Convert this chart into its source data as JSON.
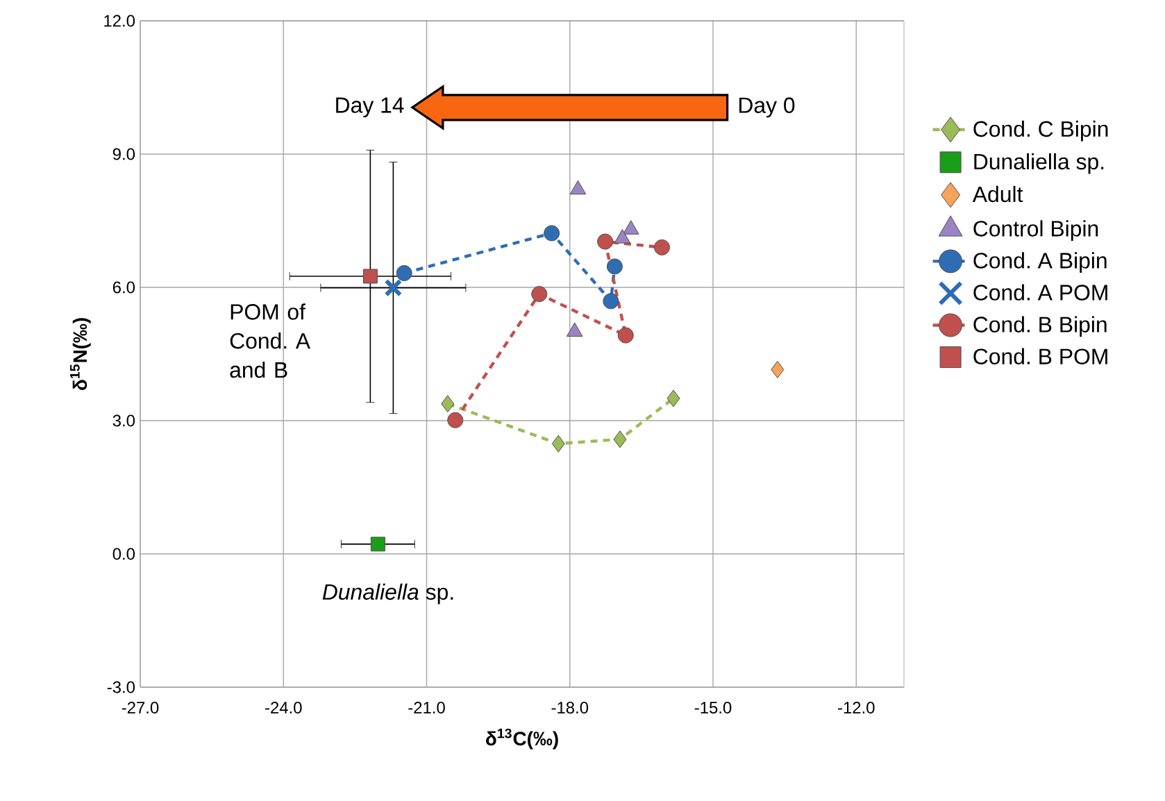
{
  "chart_data": {
    "type": "scatter",
    "xlabel": "δ$^{13}$C(‰)",
    "ylabel": "δ$^{15}$N(‰)",
    "xlim": [
      -27,
      -11
    ],
    "ylim": [
      -3,
      12
    ],
    "xticks": [
      {
        "value": -27,
        "label": "-27.0"
      },
      {
        "value": -24,
        "label": "-24.0"
      },
      {
        "value": -21,
        "label": "-21.0"
      },
      {
        "value": -18,
        "label": "-18.0"
      },
      {
        "value": -15,
        "label": "-15.0"
      },
      {
        "value": -12,
        "label": "-12.0"
      }
    ],
    "yticks": [
      {
        "value": -3,
        "label": "-3.0"
      },
      {
        "value": 0,
        "label": "0.0"
      },
      {
        "value": 3,
        "label": "3.0"
      },
      {
        "value": 6,
        "label": "6.0"
      },
      {
        "value": 9,
        "label": "9.0"
      },
      {
        "value": 12,
        "label": "12.0"
      }
    ],
    "grid": true,
    "legend": "right",
    "annotations": [
      "Day 14",
      "Day 0",
      "POM of Cond. A and B",
      "*Dunaliella* sp."
    ],
    "series": [
      {
        "name": "Cond. C Bipin",
        "type": "line",
        "line_style": "dashed",
        "marker": "diamond",
        "color": "#9bbb59",
        "x": [
          -20.56,
          -18.24,
          -16.95,
          -15.83
        ],
        "values": [
          3.38,
          2.48,
          2.58,
          3.5
        ]
      },
      {
        "name": "Dunaliella sp.",
        "marker": "square",
        "color": "#1a9e1a",
        "x": [
          -22.02
        ],
        "values": [
          0.22
        ],
        "xerrors": [
          0.77
        ]
      },
      {
        "name": "Adult",
        "marker": "diamond",
        "color": "#f7a35c",
        "x": [
          -13.65
        ],
        "values": [
          4.15
        ]
      },
      {
        "name": "Control Bipin",
        "marker": "triangle",
        "color": "#9a85c4",
        "x": [
          -17.83,
          -17.9,
          -16.72,
          -16.9
        ],
        "values": [
          8.2,
          5.0,
          7.3,
          7.1
        ]
      },
      {
        "name": "Cond. A Bipin",
        "type": "line",
        "line_style": "dashed",
        "marker": "circle",
        "color": "#2e6db4",
        "x": [
          -21.47,
          -18.38,
          -17.14,
          -17.06
        ],
        "values": [
          6.32,
          7.22,
          5.69,
          6.47
        ]
      },
      {
        "name": "Cond. A POM",
        "marker": "cross",
        "color": "#2e6db4",
        "x": [
          -21.7
        ],
        "values": [
          5.99
        ],
        "xerrors": [
          1.52
        ],
        "errors": [
          2.83
        ]
      },
      {
        "name": "Cond. B Bipin",
        "type": "line",
        "line_style": "dashed",
        "marker": "circle",
        "color": "#c0504d",
        "x": [
          -20.4,
          -18.64,
          -16.83,
          -17.26,
          -16.07
        ],
        "values": [
          3.01,
          5.85,
          4.92,
          7.03,
          6.9
        ]
      },
      {
        "name": "Cond. B POM",
        "marker": "square",
        "color": "#c0504d",
        "x": [
          -22.18
        ],
        "values": [
          6.25
        ],
        "xerrors": [
          1.69
        ],
        "errors": [
          2.84
        ]
      }
    ]
  }
}
